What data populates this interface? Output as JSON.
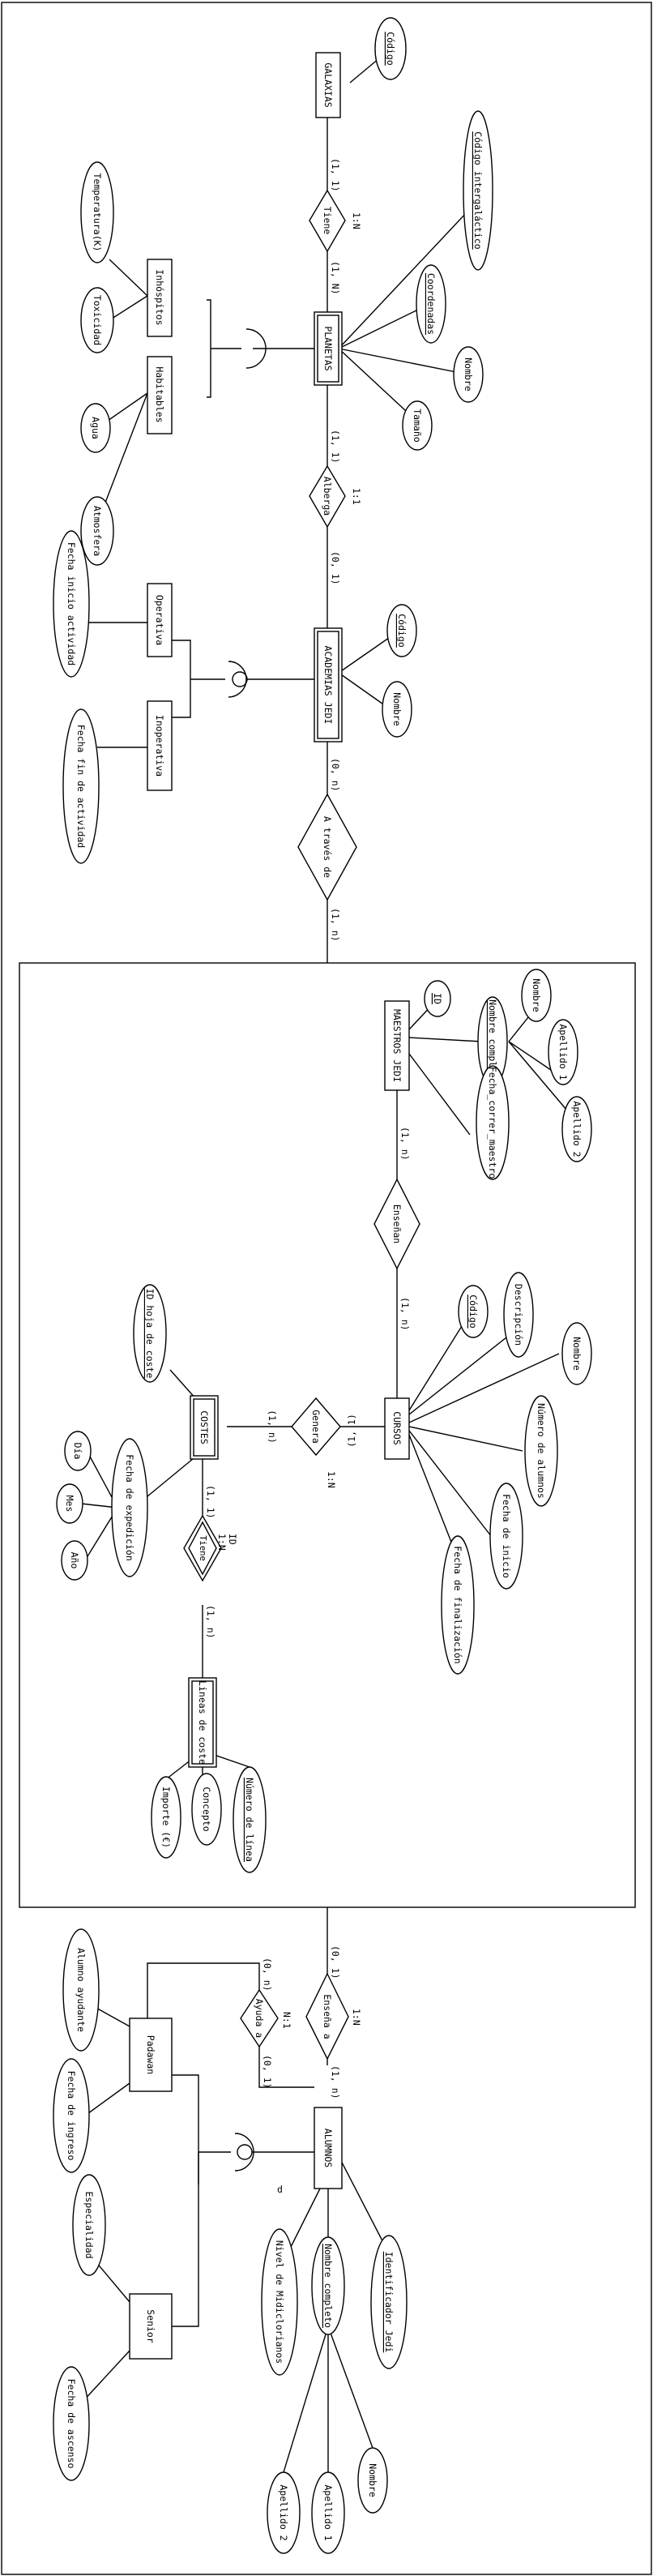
{
  "entities": {
    "galaxias": "GALAXIAS",
    "planetas": "PLANETAS",
    "academias": "ACADEMIAS JEDI",
    "maestros": "MAESTROS JEDI",
    "cursos": "CURSOS",
    "costes": "COSTES",
    "lineas": "Lineas de coste",
    "alumnos": "ALUMNOS",
    "inhospitos": "Inhóspitos",
    "habitables": "Habitables",
    "operativa": "Operativa",
    "inoperativa": "Inoperativa",
    "padawan": "Padawan",
    "senior": "Senior"
  },
  "relations": {
    "tiene": "Tiene",
    "alberga": "Alberga",
    "a_traves": "A través de",
    "ensenan": "Enseñan",
    "genera": "Genera",
    "tiene2": "Tiene",
    "ensena_a": "Enseña a",
    "ayuda_a": "Ayuda a"
  },
  "attributes": {
    "galaxias_codigo": "Código",
    "codigo_intergalactico": "Código intergaláctico",
    "coordenadas": "Coordenadas",
    "nombre_planeta": "Nombre",
    "tamano": "Tamaño",
    "temperatura": "Temperatura(K)",
    "toxicidad": "Toxicidad",
    "agua": "Agua",
    "atmosfera": "Atmosfera",
    "academia_codigo": "Código",
    "academia_nombre": "Nombre",
    "fecha_inicio_actividad": "Fecha inicio actividad",
    "fecha_fin_actividad": "Fecha fin de actividad",
    "maestro_id": "ID",
    "maestro_nombre_completo": "Nombre completo",
    "maestro_nombre": "Nombre",
    "maestro_apellido1": "Apellido 1",
    "maestro_apellido2": "Apellido 2",
    "fecha_correr_maestro": "Fecha_correr_maestro",
    "curso_codigo": "Código",
    "descripcion": "Descripción",
    "curso_nombre": "Nombre",
    "numero_alumnos": "Número de alumnos",
    "fecha_inicio": "Fecha de inicio",
    "fecha_finalizacion": "Fecha de finalización",
    "id_hoja_coste": "ID hoja de coste",
    "fecha_expedicion": "Fecha de expedición",
    "dia": "Día",
    "mes": "Mes",
    "anio": "Año",
    "numero_linea": "Número de línea",
    "concepto": "Concepto",
    "importe": "Importe (€)",
    "alumno_ayudante": "Alumno ayudante",
    "fecha_ingreso": "Fecha de ingreso",
    "especialidad": "Especialidad",
    "fecha_ascenso": "Fecha de ascenso",
    "identificador_jedi": "Identificador Jedi",
    "alumno_nombre_completo": "Nombre completo",
    "nivel_midiclorianos": "Nivel de Midiclorianos",
    "alumno_nombre": "Nombre",
    "alumno_apellido1": "Apellido 1",
    "alumno_apellido2": "Apellido 2"
  },
  "cardinalities": {
    "tiene_galaxias": "(1, 1)",
    "tiene_planetas": "(1, N)",
    "tiene_ratio": "1:N",
    "alberga_planetas": "(1, 1)",
    "alberga_academias": "(0, 1)",
    "alberga_ratio": "1:1",
    "atraves_academias": "(0, n)",
    "atraves_bloque": "(1, n)",
    "ensenan_maestros": "(1, n)",
    "ensenan_cursos": "(1, n)",
    "genera_costes": "(1, n)",
    "genera_cursos": "(1, 1)",
    "genera_ratio": "1:N",
    "tiene2_costes": "(1, 1)",
    "tiene2_lineas": "(1, n)",
    "tiene2_ratio": "1:N",
    "tiene2_id": "ID",
    "ensena_bloque": "(0, 1)",
    "ensena_alumnos": "(1, n)",
    "ensena_ratio": "1:N",
    "ayuda_padawan": "(0, n)",
    "ayuda_alumnos": "(0, 1)",
    "ayuda_ratio": "N:1",
    "alumnos_d": "d"
  }
}
